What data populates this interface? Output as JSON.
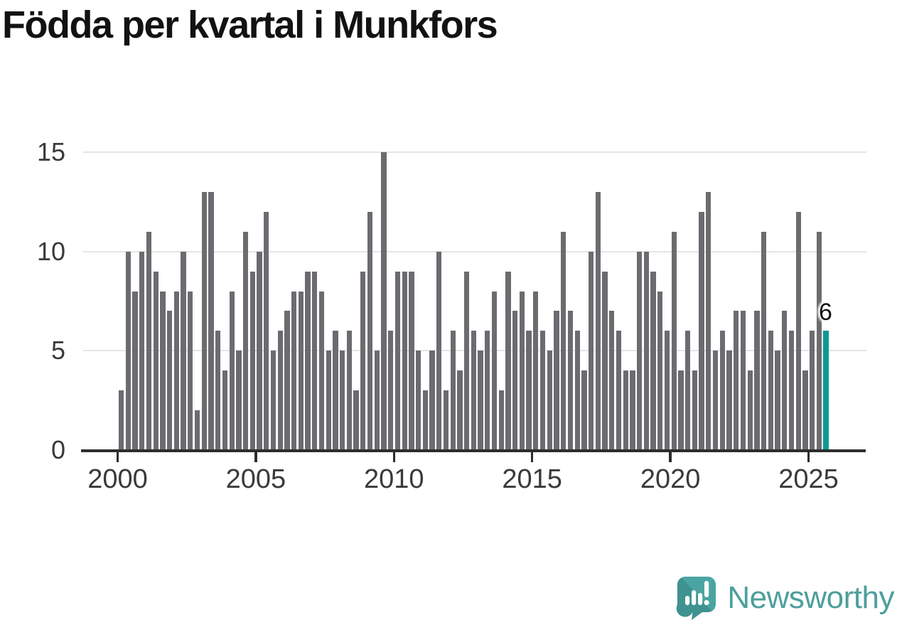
{
  "title": "Födda per kvartal i Munkfors",
  "chart_data": {
    "type": "bar",
    "title": "Födda per kvartal i Munkfors",
    "series_description": "Births per quarter, quarterly from 2000 Q1 to 2025 Q3",
    "x_start": "2000-Q1",
    "x_end": "2025-Q3",
    "frequency": "quarterly",
    "values": [
      3,
      10,
      8,
      10,
      11,
      9,
      8,
      7,
      8,
      10,
      8,
      2,
      13,
      13,
      6,
      4,
      8,
      5,
      11,
      9,
      10,
      12,
      5,
      6,
      7,
      8,
      8,
      9,
      9,
      8,
      5,
      6,
      5,
      6,
      3,
      9,
      12,
      5,
      15,
      6,
      9,
      9,
      9,
      5,
      3,
      5,
      10,
      3,
      6,
      4,
      9,
      6,
      5,
      6,
      8,
      3,
      9,
      7,
      8,
      6,
      8,
      6,
      5,
      7,
      11,
      7,
      6,
      4,
      10,
      13,
      9,
      7,
      6,
      4,
      4,
      10,
      10,
      9,
      8,
      6,
      11,
      4,
      6,
      4,
      12,
      13,
      5,
      6,
      5,
      7,
      7,
      4,
      7,
      11,
      6,
      5,
      7,
      6,
      12,
      4,
      6,
      11,
      6
    ],
    "x_tick_labels": [
      "2000",
      "2005",
      "2010",
      "2015",
      "2020",
      "2025"
    ],
    "y_tick_labels": [
      "0",
      "5",
      "10",
      "15"
    ],
    "ylim": [
      0,
      15
    ],
    "grid": "horizontal",
    "bar_color": "#6b6b70",
    "highlight": {
      "index": 102,
      "label": "6",
      "color": "#0a9a94"
    }
  },
  "annotation": {
    "last_value_label": "6"
  },
  "logo": {
    "text": "Newsworthy",
    "color": "#4d9f9b",
    "icon_color": "#4aa5a2",
    "icon_color_dark": "#3f9290"
  }
}
